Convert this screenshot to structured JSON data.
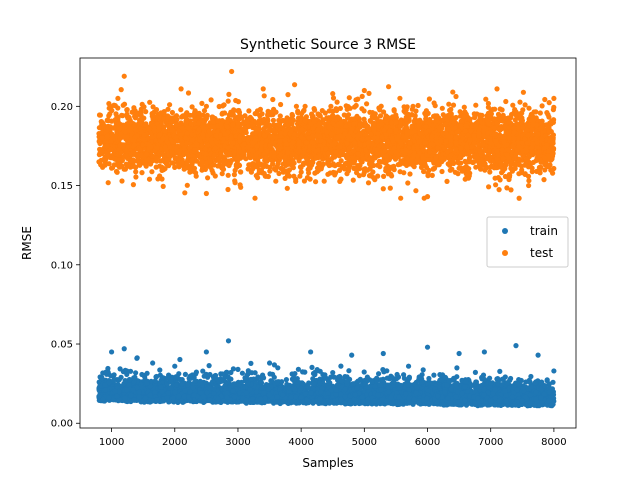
{
  "chart_data": {
    "type": "scatter",
    "title": "Synthetic Source 3 RMSE",
    "xlabel": "Samples",
    "ylabel": "RMSE",
    "xlim": [
      500,
      8350
    ],
    "ylim": [
      -0.003,
      0.2305
    ],
    "xticks": [
      1000,
      2000,
      3000,
      4000,
      5000,
      6000,
      7000,
      8000
    ],
    "yticks": [
      0.0,
      0.05,
      0.1,
      0.15,
      0.2
    ],
    "ytick_labels": [
      "0.00",
      "0.05",
      "0.10",
      "0.15",
      "0.20"
    ],
    "grid": false,
    "legend_position": "center-right",
    "series": [
      {
        "name": "train",
        "color": "#1f77b4",
        "x_range": [
          800,
          8000
        ],
        "y_floor": 0.009,
        "y_typical_band": [
          0.01,
          0.03
        ],
        "y_outliers_max": 0.052,
        "points": [
          [
            800,
            0.017
          ],
          [
            900,
            0.021
          ],
          [
            1000,
            0.045
          ],
          [
            1150,
            0.029
          ],
          [
            1200,
            0.047
          ],
          [
            1400,
            0.041
          ],
          [
            1650,
            0.038
          ],
          [
            2000,
            0.036
          ],
          [
            2500,
            0.045
          ],
          [
            2850,
            0.052
          ],
          [
            3000,
            0.034
          ],
          [
            3500,
            0.038
          ],
          [
            4150,
            0.045
          ],
          [
            4500,
            0.032
          ],
          [
            4800,
            0.043
          ],
          [
            5300,
            0.044
          ],
          [
            5700,
            0.036
          ],
          [
            6000,
            0.048
          ],
          [
            6500,
            0.044
          ],
          [
            6900,
            0.045
          ],
          [
            7400,
            0.049
          ],
          [
            7750,
            0.043
          ],
          [
            8000,
            0.033
          ]
        ]
      },
      {
        "name": "test",
        "color": "#ff7f0e",
        "x_range": [
          800,
          8000
        ],
        "y_center": 0.178,
        "y_typical_band": [
          0.158,
          0.2
        ],
        "y_min": 0.142,
        "y_max": 0.222,
        "points": [
          [
            800,
            0.165
          ],
          [
            1100,
            0.205
          ],
          [
            1200,
            0.219
          ],
          [
            1600,
            0.154
          ],
          [
            2100,
            0.211
          ],
          [
            2500,
            0.145
          ],
          [
            2900,
            0.222
          ],
          [
            3400,
            0.211
          ],
          [
            4100,
            0.155
          ],
          [
            4500,
            0.208
          ],
          [
            5000,
            0.21
          ],
          [
            5300,
            0.148
          ],
          [
            6000,
            0.143
          ],
          [
            6400,
            0.209
          ],
          [
            7100,
            0.211
          ],
          [
            7450,
            0.142
          ],
          [
            7600,
            0.15
          ],
          [
            8000,
            0.205
          ]
        ]
      }
    ]
  }
}
